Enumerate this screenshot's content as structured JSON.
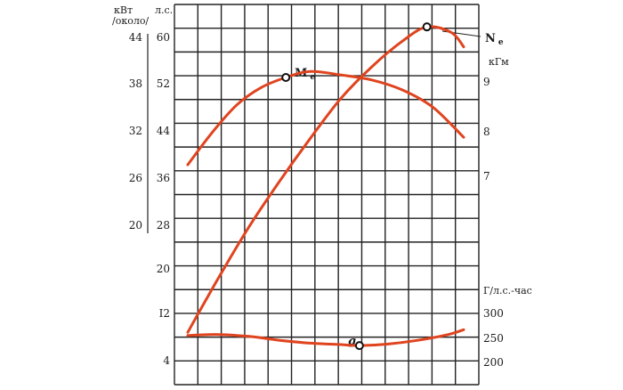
{
  "chart_data": {
    "type": "line",
    "units": {
      "kw_l1": "кВт",
      "kw_l2": "/около/",
      "hp": "л.с.",
      "kgm": "кГм",
      "gsfc": "Г/л.с.-час"
    },
    "axes": {
      "power_hp_ticks": [
        "28",
        "36",
        "44",
        "52",
        "60"
      ],
      "power_kw_ticks": [
        "20",
        "26",
        "32",
        "38",
        "44"
      ],
      "torque_kgm_ticks": [
        "7",
        "8",
        "9"
      ],
      "lower_hp_ticks": [
        "4",
        "I2",
        "20"
      ],
      "gsfc_ticks": [
        "200",
        "250",
        "300"
      ]
    },
    "series": [
      {
        "name": "N",
        "subscript": "e",
        "unit": "л.с.",
        "color": "#e0441f",
        "points": [
          [
            0.0,
            8.5
          ],
          [
            0.1,
            18
          ],
          [
            0.2,
            27
          ],
          [
            0.3,
            35
          ],
          [
            0.4,
            42.5
          ],
          [
            0.5,
            49.5
          ],
          [
            0.6,
            55
          ],
          [
            0.7,
            59.5
          ],
          [
            0.78,
            62
          ],
          [
            0.86,
            61
          ],
          [
            0.9,
            58.5
          ]
        ],
        "marker_index": 8
      },
      {
        "name": "M",
        "subscript": "e",
        "unit": "кГм",
        "color": "#e0441f",
        "points": [
          [
            0.0,
            7.25
          ],
          [
            0.08,
            7.9
          ],
          [
            0.16,
            8.45
          ],
          [
            0.24,
            8.8
          ],
          [
            0.32,
            9.0
          ],
          [
            0.4,
            9.12
          ],
          [
            0.5,
            9.05
          ],
          [
            0.6,
            8.95
          ],
          [
            0.7,
            8.75
          ],
          [
            0.8,
            8.4
          ],
          [
            0.9,
            7.8
          ]
        ],
        "marker_index": 4
      },
      {
        "name": "g",
        "unit": "Г/л.с.-час",
        "color": "#e0441f",
        "points": [
          [
            0.0,
            256
          ],
          [
            0.1,
            258
          ],
          [
            0.2,
            254
          ],
          [
            0.3,
            246
          ],
          [
            0.4,
            240
          ],
          [
            0.5,
            237
          ],
          [
            0.56,
            235
          ],
          [
            0.65,
            238
          ],
          [
            0.75,
            246
          ],
          [
            0.85,
            258
          ],
          [
            0.9,
            268
          ]
        ],
        "marker_index": 6
      }
    ],
    "grid": true,
    "title": "",
    "xlabel": ""
  }
}
